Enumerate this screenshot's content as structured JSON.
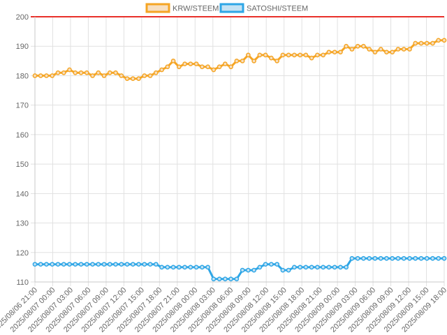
{
  "chart_data": {
    "type": "line",
    "title": "",
    "xlabel": "",
    "ylabel": "",
    "ylim": [
      110,
      200
    ],
    "y_ticks": [
      110,
      120,
      130,
      140,
      150,
      160,
      170,
      180,
      190,
      200
    ],
    "grid": true,
    "legend": {
      "placement": "top-center"
    },
    "reference_line": {
      "y": 200,
      "color": "#e8302a"
    },
    "x_tick_labels": [
      "2025/08/06 21:00",
      "2025/08/07 00:00",
      "2025/08/07 03:00",
      "2025/08/07 06:00",
      "2025/08/07 09:00",
      "2025/08/07 12:00",
      "2025/08/07 15:00",
      "2025/08/07 18:00",
      "2025/08/07 21:00",
      "2025/08/08 00:00",
      "2025/08/08 03:00",
      "2025/08/08 06:00",
      "2025/08/08 09:00",
      "2025/08/08 12:00",
      "2025/08/08 15:00",
      "2025/08/08 18:00",
      "2025/08/08 21:00",
      "2025/08/09 00:00",
      "2025/08/09 03:00",
      "2025/08/09 06:00",
      "2025/08/09 09:00",
      "2025/08/09 12:00",
      "2025/08/09 15:00",
      "2025/08/09 18:00"
    ],
    "series": [
      {
        "name": "KRW/STEEM",
        "color": "#f5a524",
        "fill": "#f7dfc0",
        "values": [
          180,
          180,
          180,
          180,
          181,
          181,
          182,
          181,
          181,
          181,
          180,
          181,
          180,
          181,
          181,
          180,
          179,
          179,
          179,
          180,
          180,
          181,
          182,
          183,
          185,
          183,
          184,
          184,
          184,
          183,
          183,
          182,
          183,
          184,
          183,
          185,
          185,
          187,
          185,
          187,
          187,
          186,
          185,
          187,
          187,
          187,
          187,
          187,
          186,
          187,
          187,
          188,
          188,
          188,
          190,
          189,
          190,
          190,
          189,
          188,
          189,
          188,
          188,
          189,
          189,
          189,
          191,
          191,
          191,
          191,
          192,
          192
        ]
      },
      {
        "name": "SATOSHI/STEEM",
        "color": "#2ea6e6",
        "fill": "#c4e2f4",
        "values": [
          116,
          116,
          116,
          116,
          116,
          116,
          116,
          116,
          116,
          116,
          116,
          116,
          116,
          116,
          116,
          116,
          116,
          116,
          116,
          116,
          116,
          116,
          115,
          115,
          115,
          115,
          115,
          115,
          115,
          115,
          115,
          111,
          111,
          111,
          111,
          111,
          114,
          114,
          114,
          115,
          116,
          116,
          116,
          114,
          114,
          115,
          115,
          115,
          115,
          115,
          115,
          115,
          115,
          115,
          115,
          118,
          118,
          118,
          118,
          118,
          118,
          118,
          118,
          118,
          118,
          118,
          118,
          118,
          118,
          118,
          118,
          118
        ]
      }
    ]
  }
}
